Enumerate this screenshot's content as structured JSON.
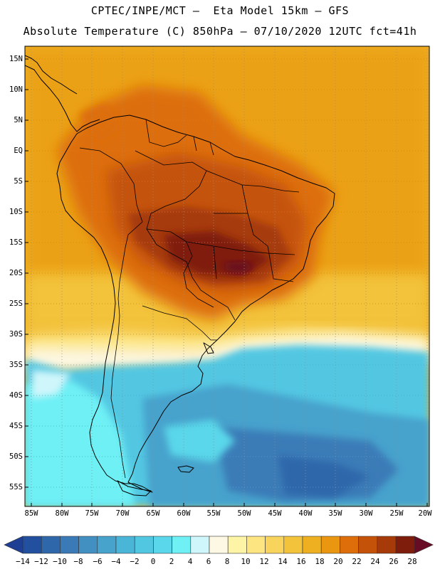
{
  "header": {
    "line1": "CPTEC/INPE/MCT –  Eta Model 15km – GFS",
    "line2": "Absolute Temperature (C) 850hPa – 07/10/2020 12UTC fct=41h"
  },
  "map": {
    "lat_labels": [
      "15N",
      "10N",
      "5N",
      "EQ",
      "5S",
      "10S",
      "15S",
      "20S",
      "25S",
      "30S",
      "35S",
      "40S",
      "45S",
      "50S",
      "55S"
    ],
    "lon_labels": [
      "85W",
      "80W",
      "75W",
      "70W",
      "65W",
      "60W",
      "55W",
      "50W",
      "45W",
      "40W",
      "35W",
      "30W",
      "25W",
      "20W"
    ],
    "lat_range": [
      17,
      -58
    ],
    "lon_range": [
      -86,
      -20
    ],
    "grid": "dotted",
    "field": "temperature_850hPa",
    "regions": [
      {
        "name": "north-band",
        "temp": 22
      },
      {
        "name": "south-atlantic",
        "temp": 2
      },
      {
        "name": "patagonia",
        "temp": -2
      },
      {
        "name": "central-brazil",
        "temp": 26
      },
      {
        "name": "hot-core",
        "temp": 28
      }
    ]
  },
  "colorbar": {
    "labels": [
      "-14",
      "-12",
      "-10",
      "-8",
      "-6",
      "-4",
      "-2",
      "0",
      "2",
      "4",
      "6",
      "8",
      "10",
      "12",
      "14",
      "16",
      "18",
      "20",
      "22",
      "24",
      "26",
      "28"
    ],
    "colors": [
      "#1f3f94",
      "#22509e",
      "#2f67ab",
      "#3a7bb7",
      "#428fc2",
      "#47a2cc",
      "#4bb5d7",
      "#52c7e2",
      "#5ad7ea",
      "#6ef0f5",
      "#cff6fb",
      "#fdf8e4",
      "#fdf4a6",
      "#fde582",
      "#f8d45c",
      "#f3c33b",
      "#eeb021",
      "#ea9610",
      "#dd6e0a",
      "#c45209",
      "#a63a08",
      "#7f1d0d",
      "#680b24"
    ]
  }
}
